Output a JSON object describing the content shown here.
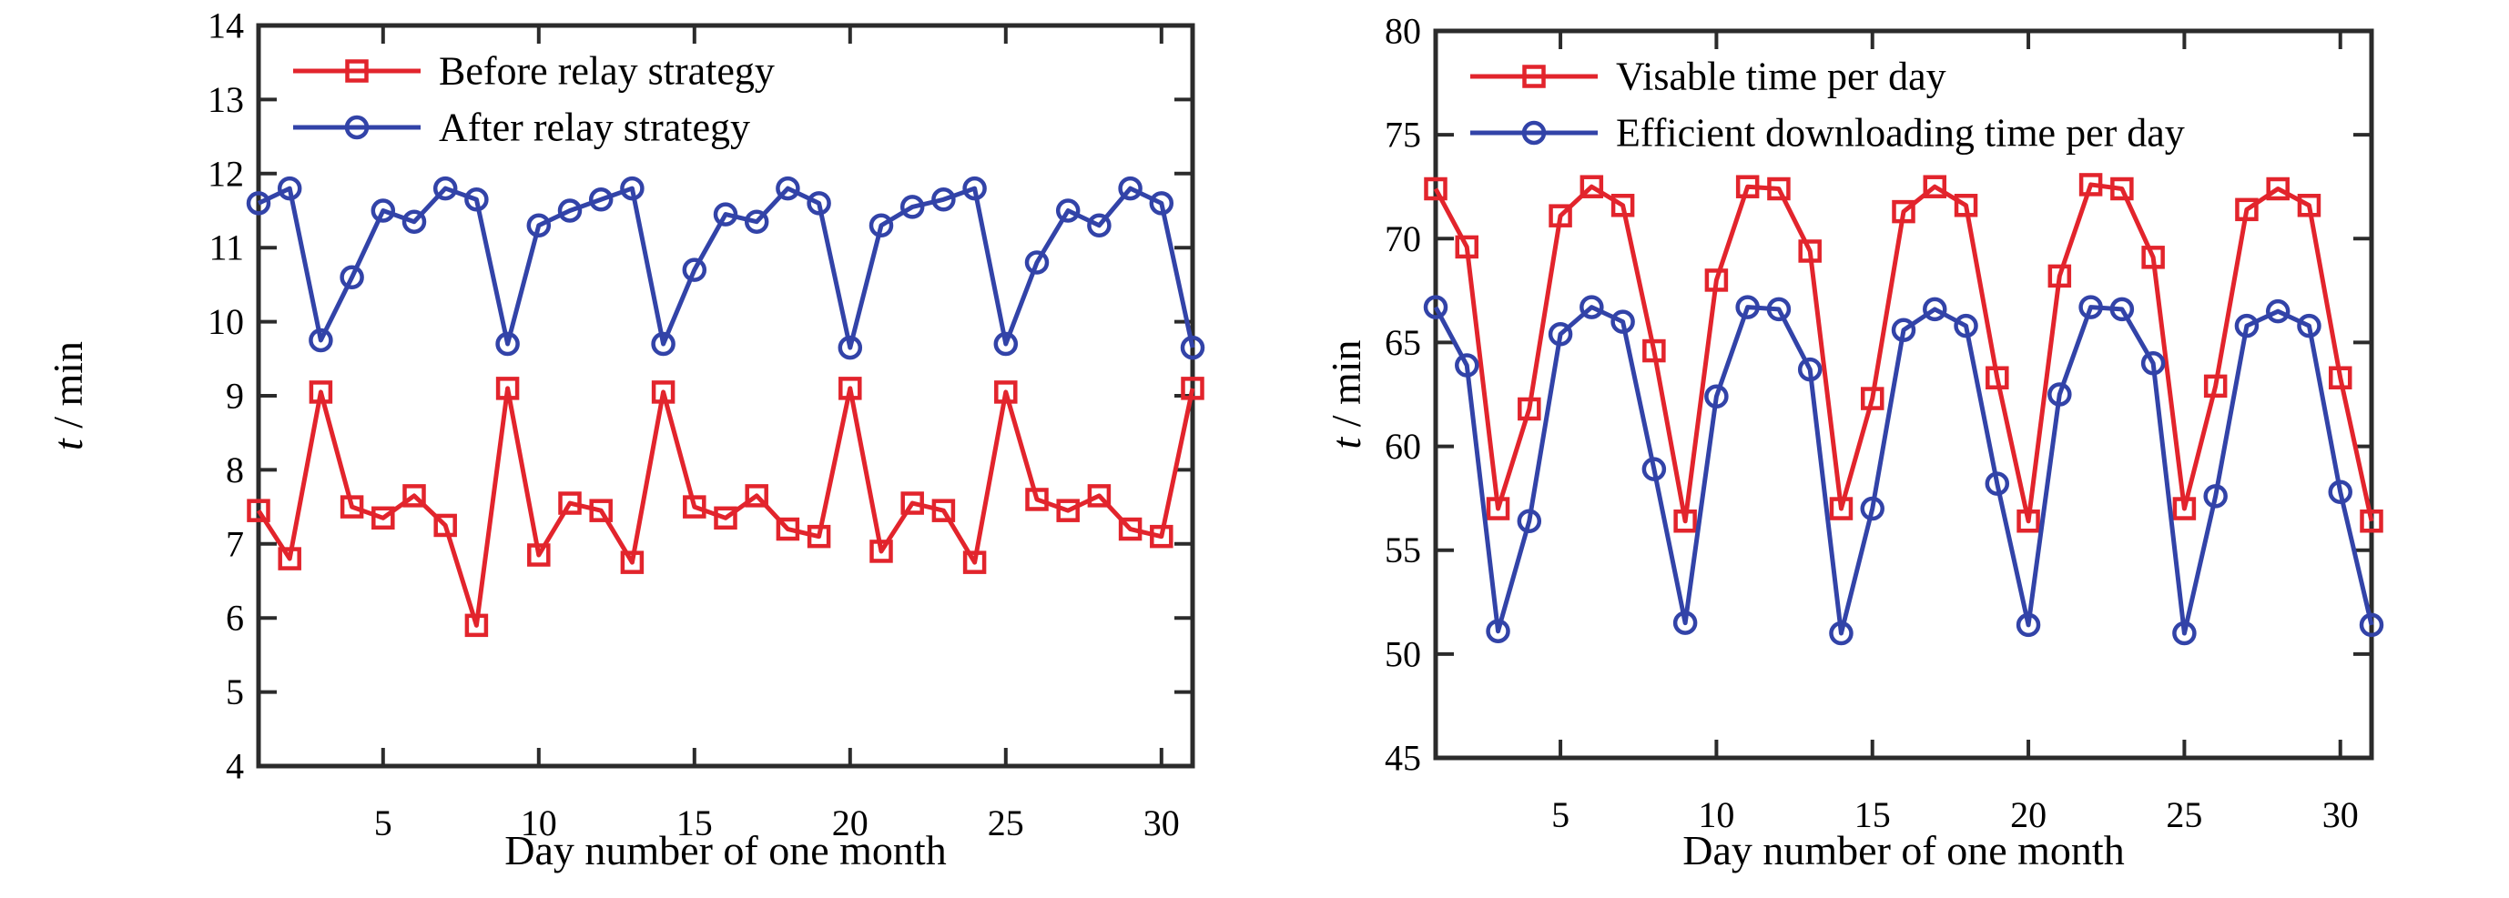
{
  "figure": {
    "background": "#ffffff"
  },
  "colors": {
    "axis": "#2b2b2b",
    "text": "#000000",
    "red_series": "#e2242c",
    "blue_series": "#3243a8"
  },
  "chart_data": [
    {
      "type": "line",
      "title": "",
      "xlabel": "Day number of one month",
      "ylabel": "t / min",
      "ylabel_italic_prefix": "t",
      "ylabel_rest": " / min",
      "x": [
        1,
        2,
        3,
        4,
        5,
        6,
        7,
        8,
        9,
        10,
        11,
        12,
        13,
        14,
        15,
        16,
        17,
        18,
        19,
        20,
        21,
        22,
        23,
        24,
        25,
        26,
        27,
        28,
        29,
        30,
        31
      ],
      "xlim": [
        1,
        31
      ],
      "ylim": [
        4,
        14
      ],
      "xticks": [
        5,
        10,
        15,
        20,
        25,
        30
      ],
      "yticks": [
        4,
        5,
        6,
        7,
        8,
        9,
        10,
        11,
        12,
        13,
        14
      ],
      "grid": false,
      "legend_position": "top-left",
      "series": [
        {
          "name": "Before relay strategy",
          "color": "#e2242c",
          "marker": "square",
          "values": [
            7.45,
            6.8,
            9.05,
            7.5,
            7.35,
            7.65,
            7.25,
            5.9,
            9.1,
            6.85,
            7.55,
            7.45,
            6.75,
            9.05,
            7.5,
            7.35,
            7.65,
            7.2,
            7.1,
            9.1,
            6.9,
            7.55,
            7.45,
            6.75,
            9.05,
            7.6,
            7.45,
            7.65,
            7.2,
            7.1,
            9.1
          ]
        },
        {
          "name": "After relay strategy",
          "color": "#3243a8",
          "marker": "circle",
          "values": [
            11.6,
            11.8,
            9.75,
            10.6,
            11.5,
            11.35,
            11.8,
            11.65,
            9.7,
            11.3,
            11.5,
            11.65,
            11.8,
            9.7,
            10.7,
            11.45,
            11.35,
            11.8,
            11.6,
            9.65,
            11.3,
            11.55,
            11.65,
            11.8,
            9.7,
            10.8,
            11.5,
            11.3,
            11.8,
            11.6,
            9.65
          ]
        }
      ]
    },
    {
      "type": "line",
      "title": "",
      "xlabel": "Day number of one month",
      "ylabel": "t / min",
      "ylabel_italic_prefix": "t",
      "ylabel_rest": " / min",
      "x": [
        1,
        2,
        3,
        4,
        5,
        6,
        7,
        8,
        9,
        10,
        11,
        12,
        13,
        14,
        15,
        16,
        17,
        18,
        19,
        20,
        21,
        22,
        23,
        24,
        25,
        26,
        27,
        28,
        29,
        30,
        31
      ],
      "xlim": [
        1,
        31
      ],
      "ylim": [
        45,
        80
      ],
      "xticks": [
        5,
        10,
        15,
        20,
        25,
        30
      ],
      "yticks": [
        45,
        50,
        55,
        60,
        65,
        70,
        75,
        80
      ],
      "grid": false,
      "legend_position": "top-left",
      "series": [
        {
          "name": "Visable time per day",
          "color": "#e2242c",
          "marker": "square",
          "values": [
            72.4,
            69.6,
            57.0,
            61.8,
            71.1,
            72.5,
            71.6,
            64.6,
            56.4,
            68.0,
            72.5,
            72.4,
            69.4,
            57.0,
            62.3,
            71.3,
            72.5,
            71.6,
            63.3,
            56.4,
            68.2,
            72.6,
            72.4,
            69.1,
            57.0,
            62.9,
            71.4,
            72.4,
            71.6,
            63.3,
            56.4
          ]
        },
        {
          "name": "Efficient downloading time per day",
          "color": "#3243a8",
          "marker": "circle",
          "values": [
            66.7,
            63.9,
            51.1,
            56.4,
            65.4,
            66.7,
            66.0,
            58.9,
            51.5,
            62.4,
            66.7,
            66.6,
            63.7,
            51.0,
            57.0,
            65.6,
            66.6,
            65.8,
            58.2,
            51.4,
            62.5,
            66.7,
            66.6,
            64.0,
            51.0,
            57.6,
            65.8,
            66.5,
            65.8,
            57.8,
            51.4
          ]
        }
      ]
    }
  ]
}
